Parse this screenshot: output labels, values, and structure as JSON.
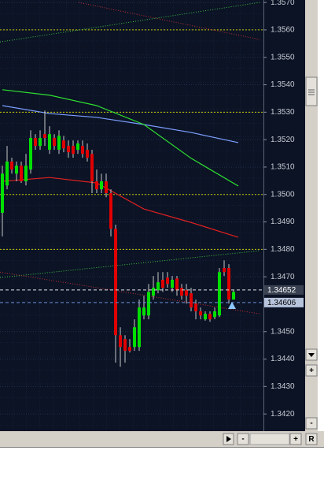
{
  "chart_data": {
    "type": "candlestick",
    "xlim": [
      -0.5,
      55.33
    ],
    "ylim": [
      1.34143,
      1.35709
    ],
    "yticks": [
      {
        "value": 1.357,
        "label": "1.3570"
      },
      {
        "value": 1.356,
        "label": "1.3560"
      },
      {
        "value": 1.355,
        "label": "1.3550"
      },
      {
        "value": 1.354,
        "label": "1.3540"
      },
      {
        "value": 1.353,
        "label": "1.3530"
      },
      {
        "value": 1.352,
        "label": "1.3520"
      },
      {
        "value": 1.351,
        "label": "1.3510"
      },
      {
        "value": 1.35,
        "label": "1.3500"
      },
      {
        "value": 1.349,
        "label": "1.3490"
      },
      {
        "value": 1.348,
        "label": "1.3480"
      },
      {
        "value": 1.347,
        "label": "1.3470"
      },
      {
        "value": 1.345,
        "label": "1.3450"
      },
      {
        "value": 1.344,
        "label": "1.3440"
      },
      {
        "value": 1.343,
        "label": "1.3430"
      },
      {
        "value": 1.342,
        "label": "1.3420"
      }
    ],
    "grid": true,
    "up_color": "#00e000",
    "down_color": "#e00000",
    "open": [
      1.34933,
      1.35033,
      1.3512,
      1.35076,
      1.35105,
      1.35048,
      1.35091,
      1.35206,
      1.35177,
      1.3522,
      1.35163,
      1.35206,
      1.35163,
      1.35197,
      1.35177,
      1.35177,
      1.35163,
      1.35177,
      1.35163,
      1.35148,
      1.35048,
      1.35019,
      1.35048,
      1.35005,
      1.34875,
      1.34487,
      1.34473,
      1.34444,
      1.34444,
      1.34444,
      1.34559,
      1.34559,
      1.34631,
      1.34651,
      1.34689,
      1.34697,
      1.3466,
      1.34694,
      1.3466,
      1.34651,
      1.3464,
      1.34602,
      1.34574,
      1.34545,
      1.34565,
      1.34553,
      1.34559,
      1.34732,
      1.34732,
      1.34617
    ],
    "high": [
      1.35105,
      1.35177,
      1.35134,
      1.3512,
      1.3512,
      1.35148,
      1.35234,
      1.3522,
      1.35234,
      1.35306,
      1.35249,
      1.3522,
      1.35234,
      1.35214,
      1.35197,
      1.35197,
      1.35197,
      1.35197,
      1.35186,
      1.35163,
      1.35091,
      1.35076,
      1.35076,
      1.35019,
      1.3489,
      1.34516,
      1.34487,
      1.34473,
      1.34545,
      1.34617,
      1.34631,
      1.34674,
      1.34703,
      1.34717,
      1.34717,
      1.34717,
      1.34703,
      1.34703,
      1.34674,
      1.34674,
      1.3466,
      1.34617,
      1.34588,
      1.34574,
      1.34574,
      1.34588,
      1.34732,
      1.3476,
      1.34746,
      1.34651
    ],
    "low": [
      1.34847,
      1.35019,
      1.35076,
      1.35048,
      1.35042,
      1.35033,
      1.35076,
      1.35163,
      1.35163,
      1.35177,
      1.35148,
      1.35163,
      1.35148,
      1.35154,
      1.35134,
      1.35134,
      1.35148,
      1.35134,
      1.3512,
      1.35005,
      1.35005,
      1.35005,
      1.3499,
      1.34847,
      1.34387,
      1.34372,
      1.34387,
      1.34424,
      1.3443,
      1.3443,
      1.34545,
      1.34545,
      1.34617,
      1.3464,
      1.34645,
      1.3466,
      1.34645,
      1.34631,
      1.34617,
      1.34602,
      1.34574,
      1.34545,
      1.34545,
      1.3454,
      1.34536,
      1.34545,
      1.34553,
      1.34703,
      1.34602,
      1.34617
    ],
    "close": [
      1.35076,
      1.3512,
      1.35091,
      1.35105,
      1.35048,
      1.35105,
      1.35206,
      1.35177,
      1.35206,
      1.35206,
      1.3522,
      1.35177,
      1.35214,
      1.35168,
      1.35154,
      1.35148,
      1.35186,
      1.35148,
      1.35134,
      1.35048,
      1.35019,
      1.35048,
      1.35005,
      1.34875,
      1.34487,
      1.34444,
      1.3443,
      1.3443,
      1.34516,
      1.34588,
      1.34588,
      1.34645,
      1.3466,
      1.3468,
      1.3466,
      1.34674,
      1.34689,
      1.34651,
      1.34631,
      1.34631,
      1.34588,
      1.34574,
      1.34559,
      1.34565,
      1.34545,
      1.34574,
      1.34717,
      1.34717,
      1.34617,
      1.34645
    ],
    "indicators": [
      {
        "color": "#7d9fff",
        "x": [
          0,
          10,
          20,
          30,
          40,
          50
        ],
        "values": [
          1.35324,
          1.35295,
          1.35281,
          1.35255,
          1.35226,
          1.35189
        ]
      },
      {
        "color": "#30e030",
        "x": [
          0,
          10,
          20,
          30,
          40,
          50
        ],
        "values": [
          1.35382,
          1.35362,
          1.35324,
          1.35255,
          1.35132,
          1.35031
        ]
      },
      {
        "color": "#e02020",
        "x": [
          0,
          10,
          20,
          30,
          40,
          50
        ],
        "values": [
          1.35048,
          1.35062,
          1.35042,
          1.34947,
          1.34898,
          1.34844
        ]
      }
    ],
    "levels": {
      "color": "#c8c800",
      "values": [
        1.356,
        1.353,
        1.35,
        1.348
      ]
    },
    "trendlines": [
      {
        "color": "#40c040",
        "x": [
          -0.5,
          54.5
        ],
        "y": [
          1.35556,
          1.357
        ]
      },
      {
        "color": "#40c040",
        "x": [
          -0.5,
          54.5
        ],
        "y": [
          1.34697,
          1.34795
        ]
      },
      {
        "color": "#c03030",
        "x": [
          16.2,
          54.5
        ],
        "y": [
          1.357,
          1.35565
        ]
      },
      {
        "color": "#c03030",
        "x": [
          -0.5,
          54.5
        ],
        "y": [
          1.34717,
          1.34565
        ]
      }
    ],
    "bid": 1.34652,
    "ask": 1.34606
  },
  "controls": {
    "zoom_in": "+",
    "zoom_out": "-",
    "reset": "R"
  }
}
